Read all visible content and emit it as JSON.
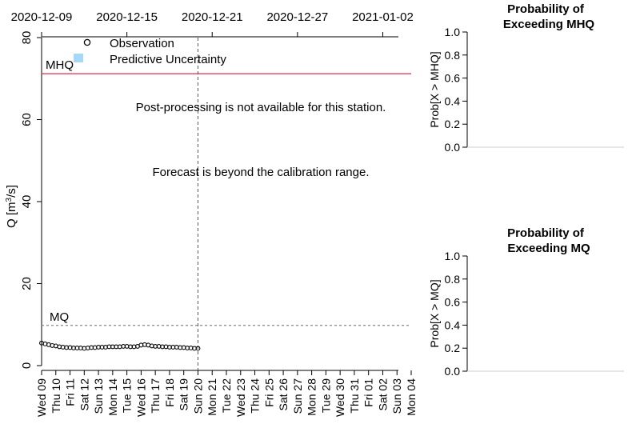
{
  "chart_data": [
    {
      "type": "scatter",
      "title": "",
      "xlabel": "",
      "ylabel": "Q [m³/s]",
      "ylabel_parts": {
        "base": "Q [m",
        "sup": "3",
        "tail": "/s]"
      },
      "ylim": [
        0,
        80
      ],
      "yticks": [
        0,
        20,
        40,
        60,
        80
      ],
      "x_start_date": "2020-12-09",
      "x_end_date": "2021-01-04",
      "top_ticks": [
        {
          "date": "2020-12-09",
          "label": "2020-12-09"
        },
        {
          "date": "2020-12-15",
          "label": "2020-12-15"
        },
        {
          "date": "2020-12-21",
          "label": "2020-12-21"
        },
        {
          "date": "2020-12-27",
          "label": "2020-12-27"
        },
        {
          "date": "2021-01-02",
          "label": "2021-01-02"
        }
      ],
      "day_labels": [
        "Wed 09",
        "Thu 10",
        "Fri 11",
        "Sat 12",
        "Sun 13",
        "Mon 14",
        "Tue 15",
        "Wed 16",
        "Thu 17",
        "Fri 18",
        "Sat 19",
        "Sun 20",
        "Mon 21",
        "Tue 22",
        "Wed 23",
        "Thu 24",
        "Fri 25",
        "Sat 26",
        "Sun 27",
        "Mon 28",
        "Tue 29",
        "Wed 30",
        "Thu 31",
        "Fri 01",
        "Sat 02",
        "Sun 03",
        "Mon 04"
      ],
      "forecast_start": "2020-12-20",
      "series": [
        {
          "name": "Observation",
          "x": [
            "2020-12-09 00:00",
            "2020-12-09 06:00",
            "2020-12-09 12:00",
            "2020-12-09 18:00",
            "2020-12-10 00:00",
            "2020-12-10 06:00",
            "2020-12-10 12:00",
            "2020-12-10 18:00",
            "2020-12-11 00:00",
            "2020-12-11 06:00",
            "2020-12-11 12:00",
            "2020-12-11 18:00",
            "2020-12-12 00:00",
            "2020-12-12 06:00",
            "2020-12-12 12:00",
            "2020-12-12 18:00",
            "2020-12-13 00:00",
            "2020-12-13 06:00",
            "2020-12-13 12:00",
            "2020-12-13 18:00",
            "2020-12-14 00:00",
            "2020-12-14 06:00",
            "2020-12-14 12:00",
            "2020-12-14 18:00",
            "2020-12-15 00:00",
            "2020-12-15 06:00",
            "2020-12-15 12:00",
            "2020-12-15 18:00",
            "2020-12-16 00:00",
            "2020-12-16 06:00",
            "2020-12-16 12:00",
            "2020-12-16 18:00",
            "2020-12-17 00:00",
            "2020-12-17 06:00",
            "2020-12-17 12:00",
            "2020-12-17 18:00",
            "2020-12-18 00:00",
            "2020-12-18 06:00",
            "2020-12-18 12:00",
            "2020-12-18 18:00",
            "2020-12-19 00:00",
            "2020-12-19 06:00",
            "2020-12-19 12:00",
            "2020-12-19 18:00",
            "2020-12-20 00:00"
          ],
          "values": [
            5.5,
            5.3,
            5.1,
            4.9,
            4.8,
            4.6,
            4.5,
            4.4,
            4.4,
            4.3,
            4.3,
            4.3,
            4.2,
            4.3,
            4.4,
            4.4,
            4.5,
            4.5,
            4.5,
            4.6,
            4.6,
            4.6,
            4.6,
            4.7,
            4.7,
            4.6,
            4.6,
            4.7,
            5.0,
            5.1,
            5.0,
            4.8,
            4.7,
            4.7,
            4.6,
            4.6,
            4.5,
            4.5,
            4.5,
            4.4,
            4.4,
            4.3,
            4.3,
            4.2,
            4.2
          ]
        }
      ],
      "legend": {
        "placement": "top-left",
        "observation_label": "Observation",
        "uncertainty_label": "Predictive Uncertainty",
        "uncertainty_color": "#a6d8f7"
      },
      "reference_lines": [
        {
          "label": "MHQ",
          "value": 71.2,
          "color": "#e0294a",
          "style": "solid"
        },
        {
          "label": "MQ",
          "value": 9.8,
          "color": "#888888",
          "style": "dashed"
        }
      ],
      "annotations": [
        "Post-processing is not available for this station.",
        "Forecast is beyond the calibration range."
      ],
      "grid": false
    },
    {
      "type": "bar",
      "title_lines": [
        "Probability of",
        "Exceeding MHQ"
      ],
      "ylabel": "Prob[X > MHQ]",
      "ylim": [
        0,
        1
      ],
      "yticks": [
        "0.0",
        "0.2",
        "0.4",
        "0.6",
        "0.8",
        "1.0"
      ],
      "values": []
    },
    {
      "type": "bar",
      "title_lines": [
        "Probability of",
        "Exceeding MQ"
      ],
      "ylabel": "Prob[X > MQ]",
      "ylim": [
        0,
        1
      ],
      "yticks": [
        "0.0",
        "0.2",
        "0.4",
        "0.6",
        "0.8",
        "1.0"
      ],
      "values": []
    }
  ]
}
